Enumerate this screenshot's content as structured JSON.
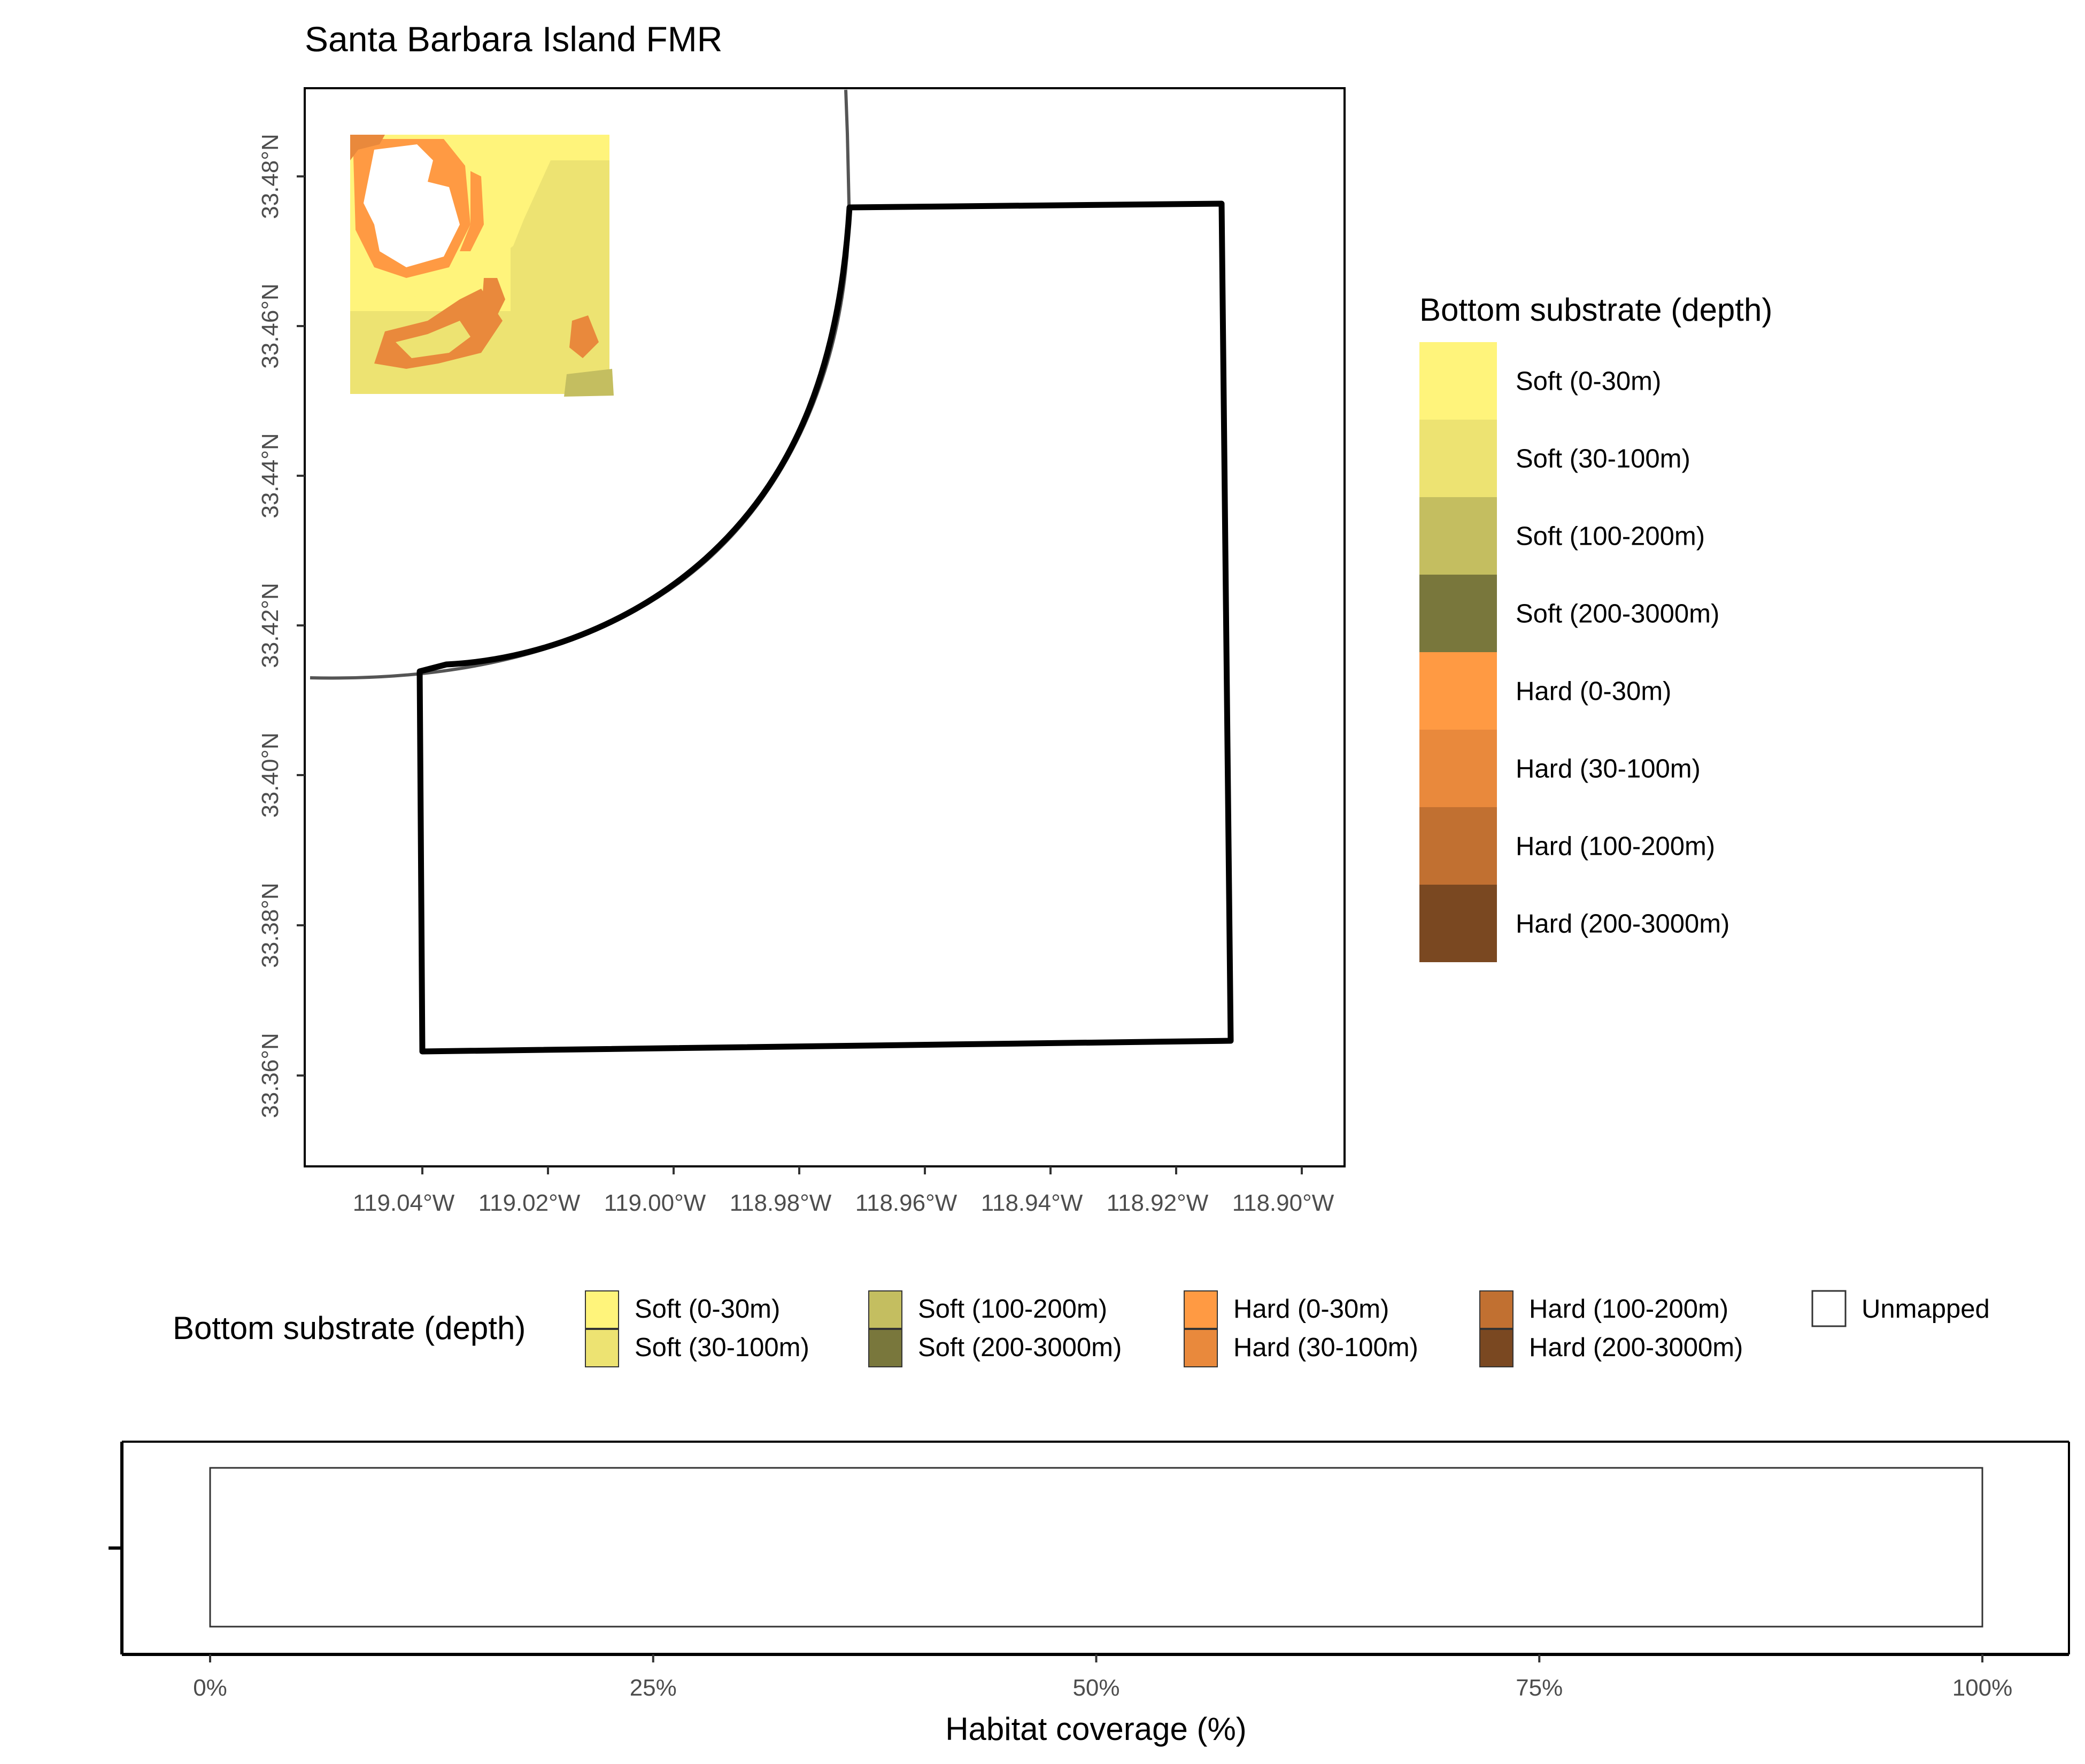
{
  "title": "Santa Barbara Island FMR",
  "map": {
    "lat_ticks": [
      "33.48°N",
      "33.46°N",
      "33.44°N",
      "33.42°N",
      "33.40°N",
      "33.38°N",
      "33.36°N"
    ],
    "lon_ticks": [
      "119.04°W",
      "119.02°W",
      "119.00°W",
      "118.98°W",
      "118.96°W",
      "118.94°W",
      "118.92°W",
      "118.90°W"
    ]
  },
  "legend_right": {
    "title": "Bottom substrate (depth)",
    "items": [
      {
        "label": "Soft (0-30m)",
        "color": "#FFF47B"
      },
      {
        "label": "Soft (30-100m)",
        "color": "#EDE372"
      },
      {
        "label": "Soft (100-200m)",
        "color": "#C4BE60"
      },
      {
        "label": "Soft (200-3000m)",
        "color": "#79773C"
      },
      {
        "label": "Hard (0-30m)",
        "color": "#FF9A43"
      },
      {
        "label": "Hard (30-100m)",
        "color": "#E9893C"
      },
      {
        "label": "Hard (100-200m)",
        "color": "#C17031"
      },
      {
        "label": "Hard (200-3000m)",
        "color": "#7A4821"
      }
    ]
  },
  "legend_bottom": {
    "title": "Bottom substrate (depth)",
    "items": [
      {
        "label": "Soft (0-30m)",
        "color": "#FFF47B"
      },
      {
        "label": "Soft (30-100m)",
        "color": "#EDE372"
      },
      {
        "label": "Soft (100-200m)",
        "color": "#C4BE60"
      },
      {
        "label": "Soft (200-3000m)",
        "color": "#79773C"
      },
      {
        "label": "Hard (0-30m)",
        "color": "#FF9A43"
      },
      {
        "label": "Hard (30-100m)",
        "color": "#E9893C"
      },
      {
        "label": "Hard (100-200m)",
        "color": "#C17031"
      },
      {
        "label": "Hard (200-3000m)",
        "color": "#7A4821"
      },
      {
        "label": "Unmapped",
        "color": "#FFFFFF"
      }
    ]
  },
  "chart_data": {
    "type": "bar",
    "orientation": "horizontal",
    "stacked": true,
    "categories": [
      ""
    ],
    "series": [
      {
        "name": "Unmapped",
        "values": [
          100
        ]
      }
    ],
    "xlabel": "Habitat coverage (%)",
    "ylabel": "",
    "xlim": [
      0,
      100
    ],
    "x_ticks": [
      "0%",
      "25%",
      "50%",
      "75%",
      "100%"
    ]
  }
}
